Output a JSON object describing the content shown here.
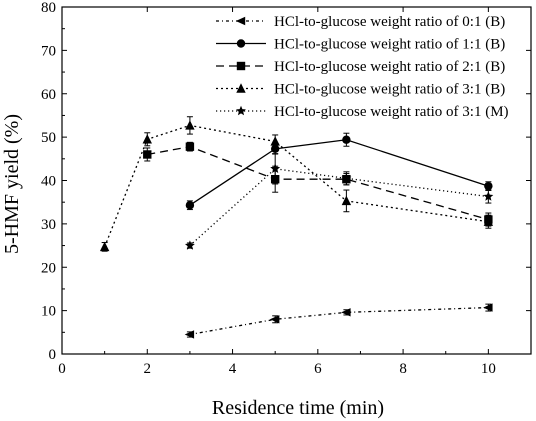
{
  "chart_data": {
    "type": "line",
    "xlabel": "Residence time (min)",
    "ylabel": "5-HMF yield (%)",
    "xlim": [
      0,
      11
    ],
    "ylim": [
      0,
      80
    ],
    "xticks": [
      "0",
      "2",
      "4",
      "6",
      "8",
      "10"
    ],
    "yticks": [
      "0",
      "10",
      "20",
      "30",
      "40",
      "50",
      "60",
      "70",
      "80"
    ],
    "grid": false,
    "legend_position": "top-right",
    "series": [
      {
        "name": "HCl-to-glucose weight ratio of 0:1 (B)",
        "marker": "triangle-left",
        "line_style": "dash-dot",
        "x": [
          3,
          5,
          6.67,
          10
        ],
        "y": [
          4.5,
          8,
          9.6,
          10.7
        ],
        "err": [
          0.6,
          0.8,
          0.6,
          0.8
        ]
      },
      {
        "name": "HCl-to-glucose weight ratio of 1:1 (B)",
        "marker": "circle",
        "line_style": "solid",
        "x": [
          3,
          5,
          6.67,
          10
        ],
        "y": [
          34.3,
          47.3,
          49.4,
          38.7
        ],
        "err": [
          1.0,
          1.2,
          1.5,
          1.0
        ]
      },
      {
        "name": "HCl-to-glucose weight ratio of 2:1 (B)",
        "marker": "square",
        "line_style": "dashed",
        "x": [
          2,
          3,
          5,
          6.67,
          10
        ],
        "y": [
          46,
          47.8,
          40.3,
          40.3,
          31
        ],
        "err": [
          1.5,
          1.0,
          3.0,
          1.3,
          1.5
        ]
      },
      {
        "name": "HCl-to-glucose weight ratio of 3:1 (B)",
        "marker": "triangle-up",
        "line_style": "short-dot",
        "x": [
          1,
          2,
          3,
          5,
          6.67,
          10
        ],
        "y": [
          24.7,
          49.5,
          52.7,
          49,
          35.3,
          30.5
        ],
        "err": [
          1.0,
          1.5,
          2.0,
          1.5,
          2.5,
          1.5
        ]
      },
      {
        "name": "HCl-to-glucose weight ratio of 3:1 (M)",
        "marker": "star",
        "line_style": "dotted",
        "x": [
          3,
          5,
          6.67,
          10
        ],
        "y": [
          25,
          42.7,
          40.5,
          36.3
        ],
        "err": [
          0.6,
          3.5,
          1.5,
          1.5
        ]
      }
    ]
  }
}
